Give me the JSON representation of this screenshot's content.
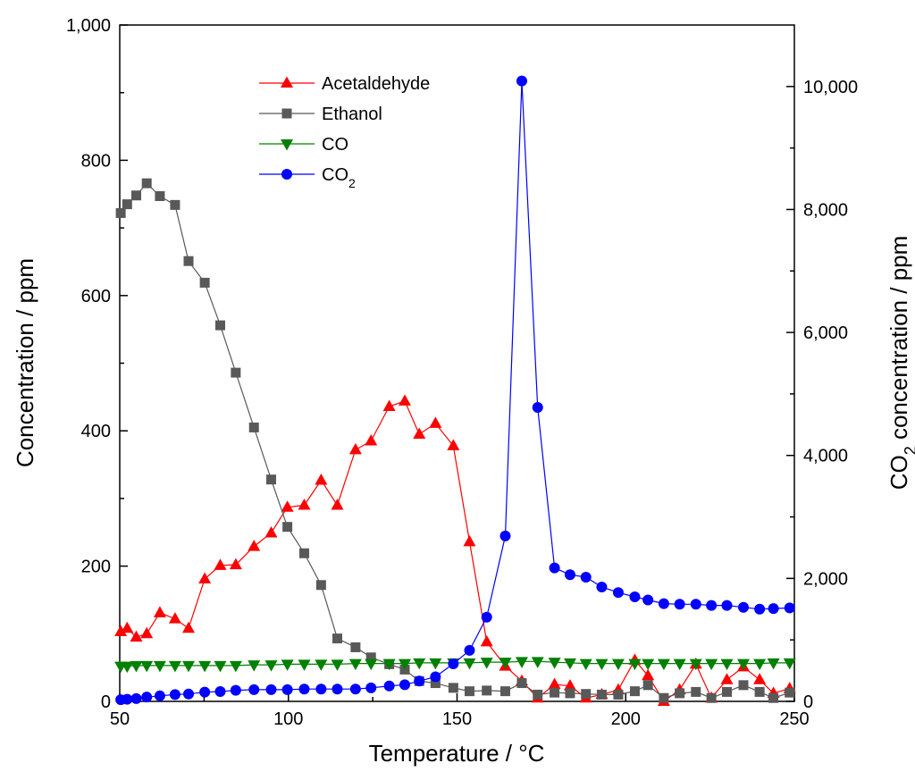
{
  "chart_data": {
    "type": "line",
    "xlabel": "Temperature / °C",
    "ylabel": "Concentration / ppm",
    "y2label": {
      "main": "CO",
      "sub": "2",
      "rest": " concentration / ppm"
    },
    "xlim": [
      50,
      250
    ],
    "ylim": [
      0,
      1000
    ],
    "y2lim": [
      0,
      11000
    ],
    "x_ticks": [
      "50",
      "100",
      "150",
      "200",
      "250"
    ],
    "y_ticks": [
      "0",
      "200",
      "400",
      "600",
      "800",
      "1,000"
    ],
    "y2_ticks": [
      "0",
      "2,000",
      "4,000",
      "6,000",
      "8,000",
      "10,000"
    ],
    "grid": false,
    "legend": "top-center",
    "series": [
      {
        "name": "Acetaldehyde",
        "color": "#ff0000",
        "marker": "triangle-up",
        "axis": "left",
        "x": [
          50.3,
          52.2,
          54.9,
          58.0,
          61.9,
          66.4,
          70.4,
          75.2,
          79.8,
          84.4,
          89.8,
          94.9,
          99.7,
          104.7,
          109.7,
          114.5,
          119.9,
          124.5,
          129.9,
          134.5,
          138.8,
          143.6,
          148.9,
          153.7,
          158.8,
          164.3,
          169.2,
          173.9,
          178.9,
          183.5,
          188.2,
          192.9,
          197.8,
          202.7,
          206.6,
          211.3,
          216.0,
          220.8,
          225.4,
          230.0,
          234.9,
          239.7,
          243.8,
          248.6
        ],
        "y": [
          103,
          108,
          95,
          100,
          131,
          122,
          108,
          181,
          201,
          202,
          229,
          249,
          287,
          290,
          327,
          290,
          372,
          385,
          436,
          444,
          395,
          411,
          378,
          236,
          88,
          52,
          30,
          5,
          25,
          23,
          5,
          10,
          17,
          61,
          38,
          0,
          17,
          55,
          5,
          32,
          51,
          32,
          12,
          19
        ]
      },
      {
        "name": "Ethanol",
        "color": "#595959",
        "marker": "square",
        "axis": "left",
        "x": [
          50.3,
          52.2,
          54.9,
          58.0,
          61.9,
          66.4,
          70.4,
          75.2,
          79.8,
          84.4,
          89.8,
          94.9,
          99.7,
          104.7,
          109.7,
          114.5,
          119.9,
          124.5,
          129.9,
          134.5,
          138.8,
          143.6,
          148.9,
          153.7,
          158.8,
          164.3,
          169.2,
          173.9,
          178.9,
          183.5,
          188.2,
          192.9,
          197.8,
          202.7,
          206.6,
          211.3,
          216.0,
          220.8,
          225.4,
          230.0,
          234.9,
          239.7,
          243.8,
          248.6
        ],
        "y": [
          722,
          735,
          748,
          766,
          747,
          734,
          651,
          619,
          556,
          486,
          405,
          328,
          258,
          219,
          172,
          93,
          80,
          65,
          55,
          47,
          30,
          27,
          20,
          15,
          16,
          15,
          27,
          10,
          13,
          12,
          11,
          10,
          10,
          15,
          24,
          5,
          12,
          14,
          5,
          14,
          24,
          14,
          5,
          13
        ]
      },
      {
        "name": "CO",
        "color": "#008000",
        "marker": "triangle-down",
        "axis": "left",
        "x": [
          50.3,
          52.2,
          54.9,
          58.0,
          61.9,
          66.4,
          70.4,
          75.2,
          79.8,
          84.4,
          89.8,
          94.9,
          99.7,
          104.7,
          109.7,
          114.5,
          119.9,
          124.5,
          129.9,
          134.5,
          138.8,
          143.6,
          148.9,
          153.7,
          158.8,
          164.3,
          169.2,
          173.9,
          178.9,
          183.5,
          188.2,
          192.9,
          197.8,
          202.7,
          206.6,
          211.3,
          216.0,
          220.8,
          225.4,
          230.0,
          234.9,
          239.7,
          243.8,
          248.6
        ],
        "y": [
          52,
          52,
          53,
          53,
          53,
          53,
          53,
          53,
          53,
          53,
          54,
          54,
          55,
          55,
          55,
          55,
          56,
          56,
          56,
          56,
          57,
          57,
          57,
          57,
          58,
          58,
          59,
          59,
          58,
          57,
          56,
          56,
          56,
          56,
          56,
          56,
          56,
          56,
          56,
          56,
          56,
          56,
          57,
          57
        ]
      },
      {
        "name": {
          "main": "CO",
          "sub": "2"
        },
        "color": "#0000ff",
        "marker": "circle",
        "axis": "right",
        "x": [
          50.3,
          52.2,
          54.9,
          58.0,
          61.9,
          66.4,
          70.4,
          75.2,
          79.8,
          84.4,
          89.8,
          94.9,
          99.7,
          104.7,
          109.7,
          114.5,
          119.9,
          124.5,
          129.9,
          134.5,
          138.8,
          143.6,
          148.9,
          153.7,
          158.8,
          164.3,
          169.2,
          173.9,
          178.9,
          183.5,
          188.2,
          192.9,
          197.8,
          202.7,
          206.6,
          211.3,
          216.0,
          220.8,
          225.4,
          230.0,
          234.9,
          239.7,
          243.8,
          248.6
        ],
        "y": [
          28,
          35,
          45,
          70,
          90,
          110,
          120,
          150,
          160,
          180,
          190,
          190,
          190,
          200,
          200,
          200,
          200,
          220,
          250,
          270,
          330,
          400,
          610,
          830,
          1370,
          2690,
          10090,
          4780,
          2170,
          2060,
          2020,
          1860,
          1770,
          1700,
          1650,
          1590,
          1580,
          1580,
          1560,
          1560,
          1530,
          1500,
          1510,
          1520
        ]
      }
    ]
  }
}
